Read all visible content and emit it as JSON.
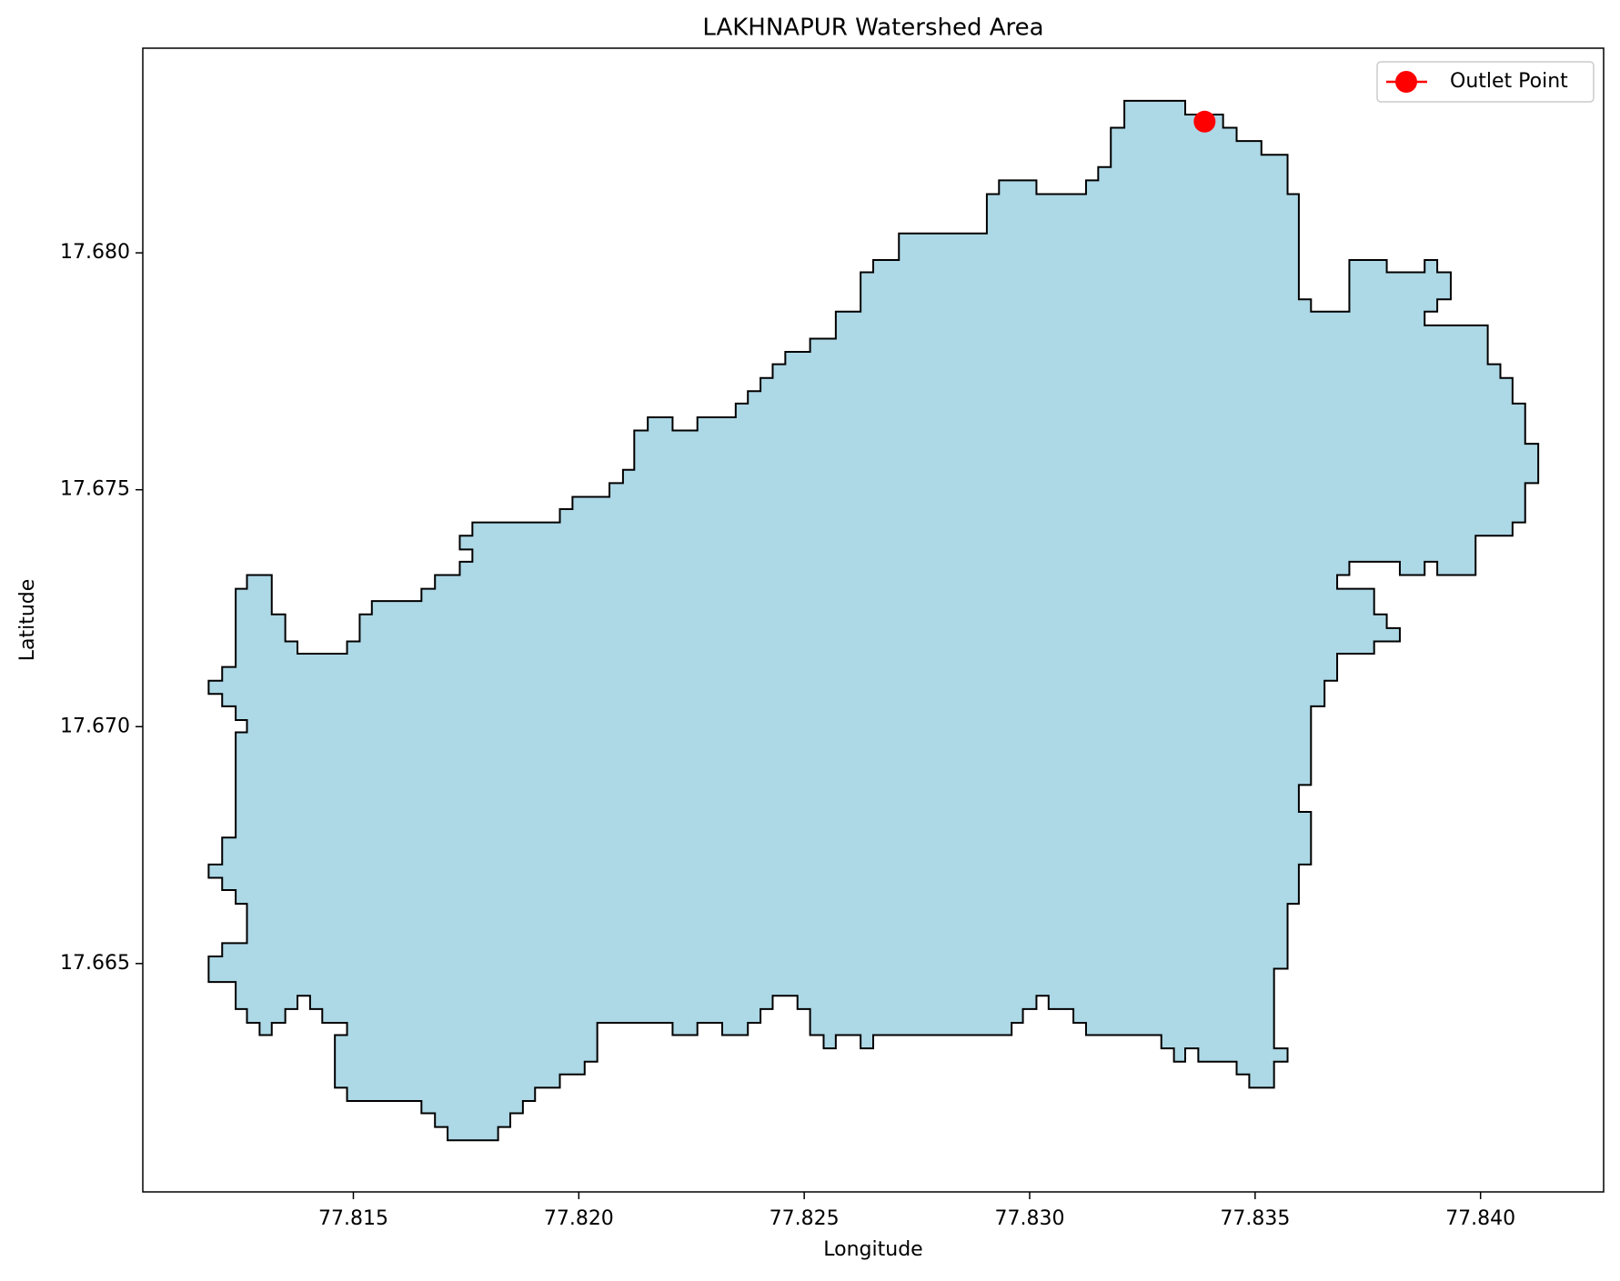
{
  "chart_data": {
    "type": "polygon",
    "title": "LAKHNAPUR Watershed Area",
    "x_label": "Longitude",
    "y_label": "Latitude",
    "xlim": [
      77.81033,
      77.84273
    ],
    "ylim": [
      17.66018,
      17.68432
    ],
    "xticks": [
      77.815,
      {
        "value": 77.82,
        "label": "77.820"
      },
      77.825,
      {
        "value": 77.83,
        "label": "77.830"
      },
      77.835,
      {
        "value": 77.84,
        "label": "77.840"
      }
    ],
    "yticks": [
      17.665,
      {
        "value": 17.67,
        "label": "17.670"
      },
      17.675,
      {
        "value": 17.68,
        "label": "17.680"
      }
    ],
    "grid": false,
    "legend_position": "upper-right",
    "polygon": {
      "color": "#add8e6",
      "edgecolor": "#000000",
      "x": [
        77.8321,
        77.83345,
        77.83345,
        77.83429,
        77.83429,
        77.83459,
        77.83459,
        77.83514,
        77.83514,
        77.83572,
        77.83572,
        77.83597,
        77.83597,
        77.83624,
        77.83624,
        77.83709,
        77.83709,
        77.83792,
        77.83792,
        77.83876,
        77.83876,
        77.83904,
        77.83904,
        77.83934,
        77.83934,
        77.83904,
        77.83904,
        77.83876,
        77.83876,
        77.84016,
        77.84016,
        77.84044,
        77.84044,
        77.84071,
        77.84071,
        77.84099,
        77.84099,
        77.84128,
        77.84128,
        77.84099,
        77.84099,
        77.84071,
        77.84071,
        77.83989,
        77.83989,
        77.83904,
        77.83904,
        77.83876,
        77.83876,
        77.83821,
        77.83821,
        77.83709,
        77.83709,
        77.83682,
        77.83682,
        77.83764,
        77.83764,
        77.83792,
        77.83792,
        77.83821,
        77.83821,
        77.83764,
        77.83764,
        77.83682,
        77.83682,
        77.83654,
        77.83654,
        77.83624,
        77.83624,
        77.83597,
        77.83597,
        77.83624,
        77.83624,
        77.83597,
        77.83597,
        77.83572,
        77.83572,
        77.83542,
        77.83542,
        77.83572,
        77.83572,
        77.83542,
        77.83542,
        77.83487,
        77.83487,
        77.83459,
        77.83459,
        77.83374,
        77.83374,
        77.83345,
        77.83345,
        77.8332,
        77.8332,
        77.83292,
        77.83292,
        77.83125,
        77.83125,
        77.83097,
        77.83097,
        77.83042,
        77.83042,
        77.83015,
        77.83015,
        77.82985,
        77.82985,
        77.8296,
        77.8296,
        77.82653,
        77.82653,
        77.82625,
        77.82625,
        77.8257,
        77.8257,
        77.82543,
        77.82543,
        77.82513,
        77.82513,
        77.82485,
        77.82485,
        77.8243,
        77.8243,
        77.82403,
        77.82403,
        77.82375,
        77.82375,
        77.82318,
        77.82318,
        77.82263,
        77.82263,
        77.82208,
        77.82208,
        77.82041,
        77.82041,
        77.82013,
        77.82013,
        77.81958,
        77.81958,
        77.81903,
        77.81903,
        77.81876,
        77.81876,
        77.81848,
        77.81848,
        77.81821,
        77.81821,
        77.81709,
        77.81709,
        77.81681,
        77.81681,
        77.81651,
        77.81651,
        77.81486,
        77.81486,
        77.81459,
        77.81459,
        77.81486,
        77.81486,
        77.81431,
        77.81431,
        77.81404,
        77.81404,
        77.81376,
        77.81376,
        77.81349,
        77.81349,
        77.81319,
        77.81319,
        77.81292,
        77.81292,
        77.81264,
        77.81264,
        77.81239,
        77.81239,
        77.81179,
        77.81179,
        77.81209,
        77.81209,
        77.81264,
        77.81264,
        77.81239,
        77.81239,
        77.81209,
        77.81209,
        77.81179,
        77.81179,
        77.81209,
        77.81209,
        77.81239,
        77.81239,
        77.81264,
        77.81264,
        77.81239,
        77.81239,
        77.81209,
        77.81209,
        77.81179,
        77.81179,
        77.81209,
        77.81209,
        77.81239,
        77.81239,
        77.81264,
        77.81264,
        77.81319,
        77.81319,
        77.81349,
        77.81349,
        77.81376,
        77.81376,
        77.81486,
        77.81486,
        77.81514,
        77.81514,
        77.81541,
        77.81541,
        77.81651,
        77.81651,
        77.81681,
        77.81681,
        77.81736,
        77.81736,
        77.81764,
        77.81764,
        77.81736,
        77.81736,
        77.81764,
        77.81764,
        77.81958,
        77.81958,
        77.81986,
        77.81986,
        77.82068,
        77.82068,
        77.82098,
        77.82098,
        77.82123,
        77.82123,
        77.82153,
        77.82153,
        77.82208,
        77.82208,
        77.82263,
        77.82263,
        77.82348,
        77.82348,
        77.82375,
        77.82375,
        77.82403,
        77.82403,
        77.8243,
        77.8243,
        77.82458,
        77.82458,
        77.82513,
        77.82513,
        77.8257,
        77.8257,
        77.82625,
        77.82625,
        77.82653,
        77.82653,
        77.8271,
        77.8271,
        77.82905,
        77.82905,
        77.82932,
        77.82932,
        77.83015,
        77.83015,
        77.83125,
        77.83125,
        77.83152,
        77.83152,
        77.8318,
        77.8318,
        77.8321
      ],
      "y": [
        17.68321,
        17.68321,
        17.68292,
        17.68292,
        17.68264,
        17.68264,
        17.68236,
        17.68236,
        17.68207,
        17.68207,
        17.68124,
        17.68124,
        17.67902,
        17.67902,
        17.67876,
        17.67876,
        17.67985,
        17.67985,
        17.67959,
        17.67959,
        17.67985,
        17.67985,
        17.67959,
        17.67959,
        17.67902,
        17.67902,
        17.67876,
        17.67876,
        17.67847,
        17.67847,
        17.67765,
        17.67765,
        17.67736,
        17.67736,
        17.67682,
        17.67682,
        17.67597,
        17.67597,
        17.67514,
        17.67514,
        17.67431,
        17.67431,
        17.67403,
        17.67403,
        17.6732,
        17.6732,
        17.67348,
        17.67348,
        17.6732,
        17.6732,
        17.67348,
        17.67348,
        17.6732,
        17.6732,
        17.67291,
        17.67291,
        17.67237,
        17.67237,
        17.67208,
        17.67208,
        17.6718,
        17.6718,
        17.67154,
        17.67154,
        17.67097,
        17.67097,
        17.67043,
        17.67043,
        17.66877,
        17.66877,
        17.6682,
        17.6682,
        17.66709,
        17.66709,
        17.66626,
        17.66626,
        17.66489,
        17.66489,
        17.66321,
        17.66321,
        17.66293,
        17.66293,
        17.66238,
        17.66238,
        17.66266,
        17.66266,
        17.66293,
        17.66293,
        17.66321,
        17.66321,
        17.66293,
        17.66293,
        17.66321,
        17.66321,
        17.66349,
        17.66349,
        17.66375,
        17.66375,
        17.66404,
        17.66404,
        17.66432,
        17.66432,
        17.66404,
        17.66404,
        17.66375,
        17.66375,
        17.66349,
        17.66349,
        17.66321,
        17.66321,
        17.66349,
        17.66349,
        17.66321,
        17.66321,
        17.66349,
        17.66349,
        17.66404,
        17.66404,
        17.66432,
        17.66432,
        17.66404,
        17.66404,
        17.66375,
        17.66375,
        17.66349,
        17.66349,
        17.66375,
        17.66375,
        17.66349,
        17.66349,
        17.66375,
        17.66375,
        17.66293,
        17.66293,
        17.66266,
        17.66266,
        17.66238,
        17.66238,
        17.6621,
        17.6621,
        17.66184,
        17.66184,
        17.66155,
        17.66155,
        17.66127,
        17.66127,
        17.66155,
        17.66155,
        17.66184,
        17.66184,
        17.6621,
        17.6621,
        17.66238,
        17.66238,
        17.66349,
        17.66349,
        17.66375,
        17.66375,
        17.66404,
        17.66404,
        17.66432,
        17.66432,
        17.66404,
        17.66404,
        17.66375,
        17.66375,
        17.66349,
        17.66349,
        17.66375,
        17.66375,
        17.66404,
        17.66404,
        17.66461,
        17.66461,
        17.66515,
        17.66515,
        17.66543,
        17.66543,
        17.66626,
        17.66626,
        17.66655,
        17.66655,
        17.66681,
        17.66681,
        17.66709,
        17.66709,
        17.66766,
        17.66766,
        17.66988,
        17.66988,
        17.67014,
        17.67014,
        17.67043,
        17.67043,
        17.67069,
        17.67069,
        17.67097,
        17.67097,
        17.67126,
        17.67126,
        17.67291,
        17.67291,
        17.6732,
        17.6732,
        17.67237,
        17.67237,
        17.6718,
        17.6718,
        17.67154,
        17.67154,
        17.6718,
        17.6718,
        17.67237,
        17.67237,
        17.67265,
        17.67265,
        17.67291,
        17.67291,
        17.6732,
        17.6732,
        17.67348,
        17.67348,
        17.67374,
        17.67374,
        17.67403,
        17.67403,
        17.67431,
        17.67431,
        17.67459,
        17.67459,
        17.67485,
        17.67485,
        17.67514,
        17.67514,
        17.67542,
        17.67542,
        17.67625,
        17.67625,
        17.67653,
        17.67653,
        17.67625,
        17.67625,
        17.67653,
        17.67653,
        17.67682,
        17.67682,
        17.67708,
        17.67708,
        17.67736,
        17.67736,
        17.67765,
        17.67765,
        17.67791,
        17.67791,
        17.67819,
        17.67819,
        17.67876,
        17.67876,
        17.67959,
        17.67959,
        17.67985,
        17.67985,
        17.68041,
        17.68041,
        17.68124,
        17.68124,
        17.68153,
        17.68153,
        17.68124,
        17.68124,
        17.68153,
        17.68153,
        17.68181,
        17.68181,
        17.68264,
        17.68264
      ]
    },
    "series": [
      {
        "name": "Outlet Point",
        "color": "#ff0000",
        "x": [
          77.83388
        ],
        "y": [
          17.68277
        ]
      }
    ]
  }
}
